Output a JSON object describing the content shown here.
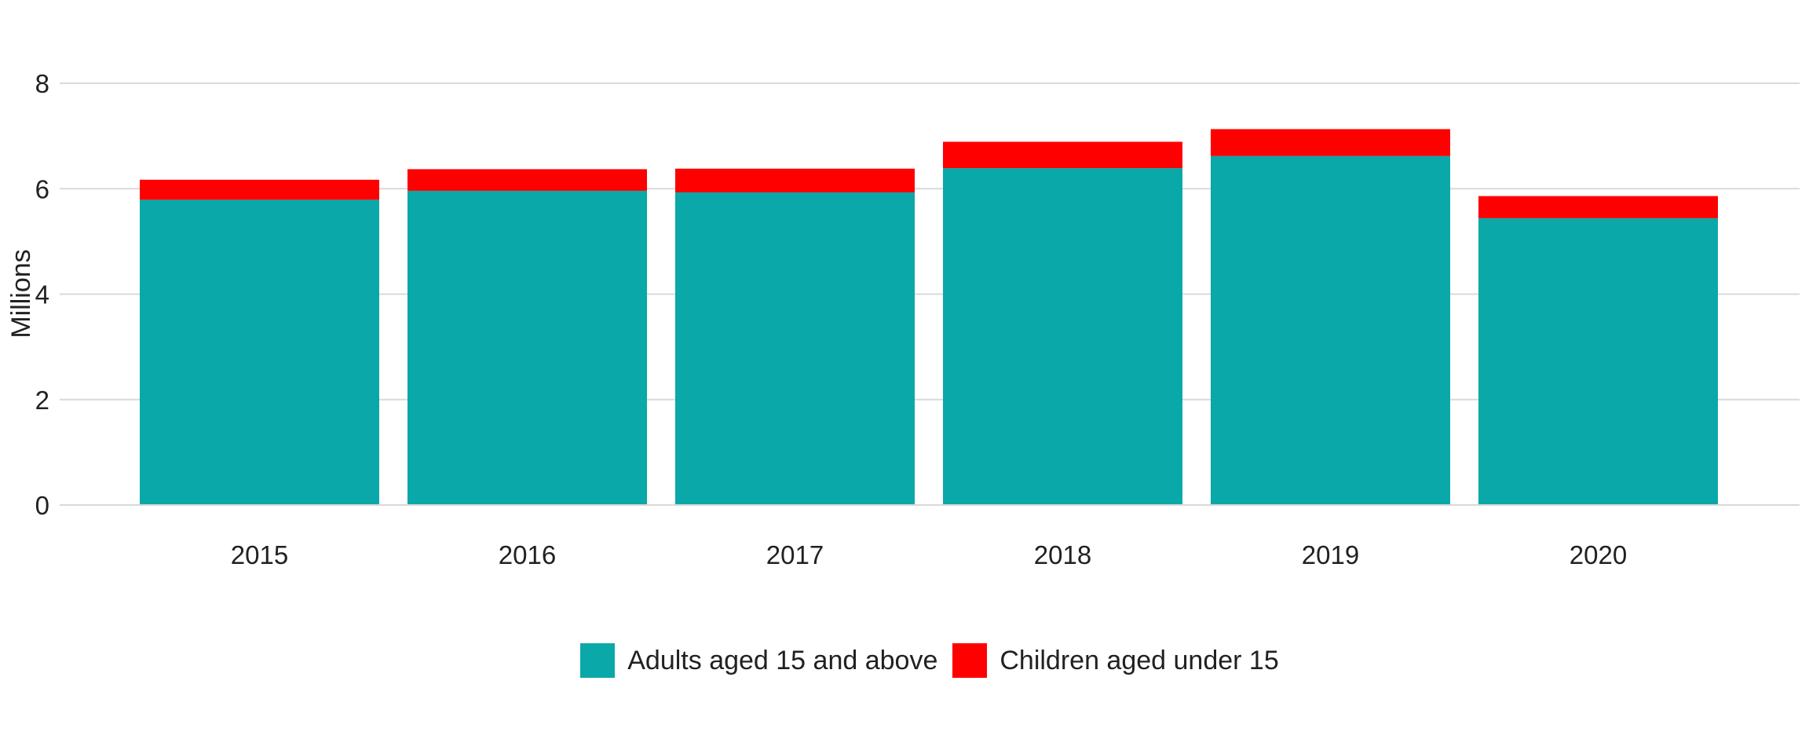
{
  "chart_data": {
    "type": "bar",
    "stacked": true,
    "categories": [
      "2015",
      "2016",
      "2017",
      "2018",
      "2019",
      "2020"
    ],
    "series": [
      {
        "name": "Adults aged 15 and above",
        "color": "#0aa8a8",
        "values": [
          5.79,
          5.96,
          5.93,
          6.39,
          6.62,
          5.44
        ]
      },
      {
        "name": "Children aged under 15",
        "color": "#ff0000",
        "values": [
          0.38,
          0.41,
          0.45,
          0.5,
          0.51,
          0.42
        ]
      }
    ],
    "xlabel": "",
    "ylabel": "Millions",
    "ylim": [
      0,
      8
    ],
    "yticks": [
      0,
      2,
      4,
      6,
      8
    ],
    "grid": "horizontal",
    "gridline_color": "#d9d9d9",
    "text_color": "#212121",
    "background_color": "#ffffff",
    "legend_position": "bottom"
  }
}
